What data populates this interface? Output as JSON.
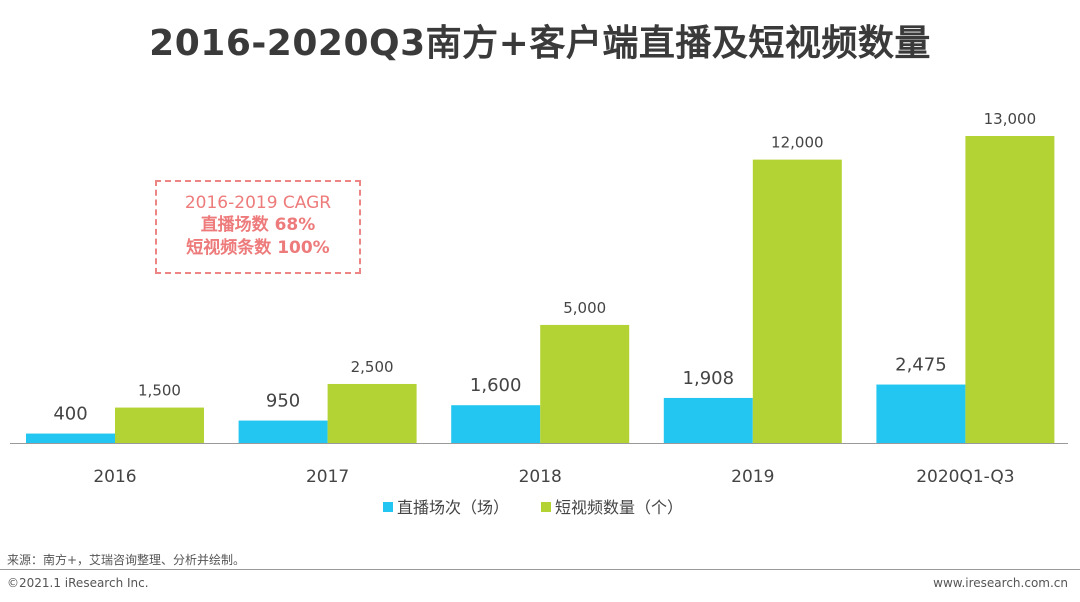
{
  "chart_data": {
    "type": "bar",
    "title": "2016-2020Q3南方+客户端直播及短视频数量",
    "categories": [
      "2016",
      "2017",
      "2018",
      "2019",
      "2020Q1-Q3"
    ],
    "series": [
      {
        "name": "直播场次（场）",
        "color": "#23c6f0",
        "values": [
          400,
          950,
          1600,
          1908,
          2475
        ]
      },
      {
        "name": "短视频数量（个）",
        "color": "#b3d334",
        "values": [
          1500,
          2500,
          5000,
          12000,
          13000
        ]
      }
    ],
    "data_labels": [
      [
        "400",
        "950",
        "1,600",
        "1,908",
        "2,475"
      ],
      [
        "1,500",
        "2,500",
        "5,000",
        "12,000",
        "13,000"
      ]
    ],
    "ylim": [
      0,
      13000
    ],
    "grid": false,
    "legend": "bottom",
    "annotation": {
      "line1": "2016-2019 CAGR",
      "line2": "直播场数 68%",
      "line3": "短视频条数 100%"
    }
  },
  "footer": {
    "source": "来源：南方+，艾瑞咨询整理、分析并绘制。",
    "copyright": "©2021.1 iResearch Inc.",
    "website": "www.iresearch.com.cn"
  }
}
